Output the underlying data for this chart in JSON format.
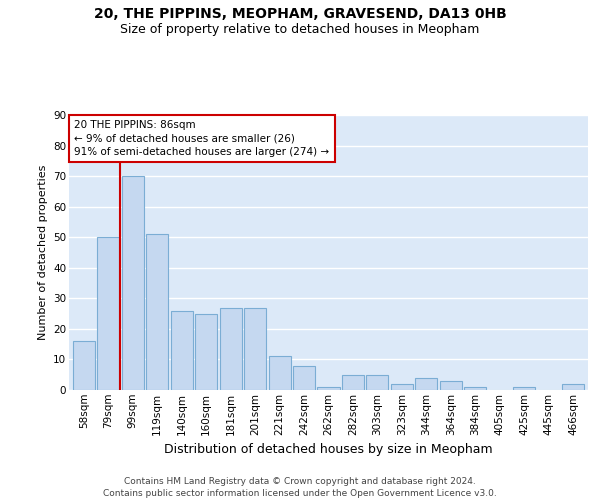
{
  "title_line1": "20, THE PIPPINS, MEOPHAM, GRAVESEND, DA13 0HB",
  "title_line2": "Size of property relative to detached houses in Meopham",
  "xlabel": "Distribution of detached houses by size in Meopham",
  "ylabel": "Number of detached properties",
  "categories": [
    "58sqm",
    "79sqm",
    "99sqm",
    "119sqm",
    "140sqm",
    "160sqm",
    "181sqm",
    "201sqm",
    "221sqm",
    "242sqm",
    "262sqm",
    "282sqm",
    "303sqm",
    "323sqm",
    "344sqm",
    "364sqm",
    "384sqm",
    "405sqm",
    "425sqm",
    "445sqm",
    "466sqm"
  ],
  "values": [
    16,
    50,
    70,
    51,
    26,
    25,
    27,
    27,
    11,
    8,
    1,
    5,
    5,
    2,
    4,
    3,
    1,
    0,
    1,
    0,
    2
  ],
  "bar_color": "#c5d8f0",
  "bar_edge_color": "#7badd4",
  "vline_x": 1.5,
  "vline_color": "#cc0000",
  "annotation_text": "20 THE PIPPINS: 86sqm\n← 9% of detached houses are smaller (26)\n91% of semi-detached houses are larger (274) →",
  "annotation_box_facecolor": "#ffffff",
  "annotation_box_edgecolor": "#cc0000",
  "ylim": [
    0,
    90
  ],
  "yticks": [
    0,
    10,
    20,
    30,
    40,
    50,
    60,
    70,
    80,
    90
  ],
  "background_color": "#dce9f8",
  "grid_color": "#ffffff",
  "footer_text": "Contains HM Land Registry data © Crown copyright and database right 2024.\nContains public sector information licensed under the Open Government Licence v3.0.",
  "title_fontsize": 10,
  "subtitle_fontsize": 9,
  "xlabel_fontsize": 9,
  "ylabel_fontsize": 8,
  "tick_fontsize": 7.5,
  "annotation_fontsize": 7.5,
  "footer_fontsize": 6.5
}
